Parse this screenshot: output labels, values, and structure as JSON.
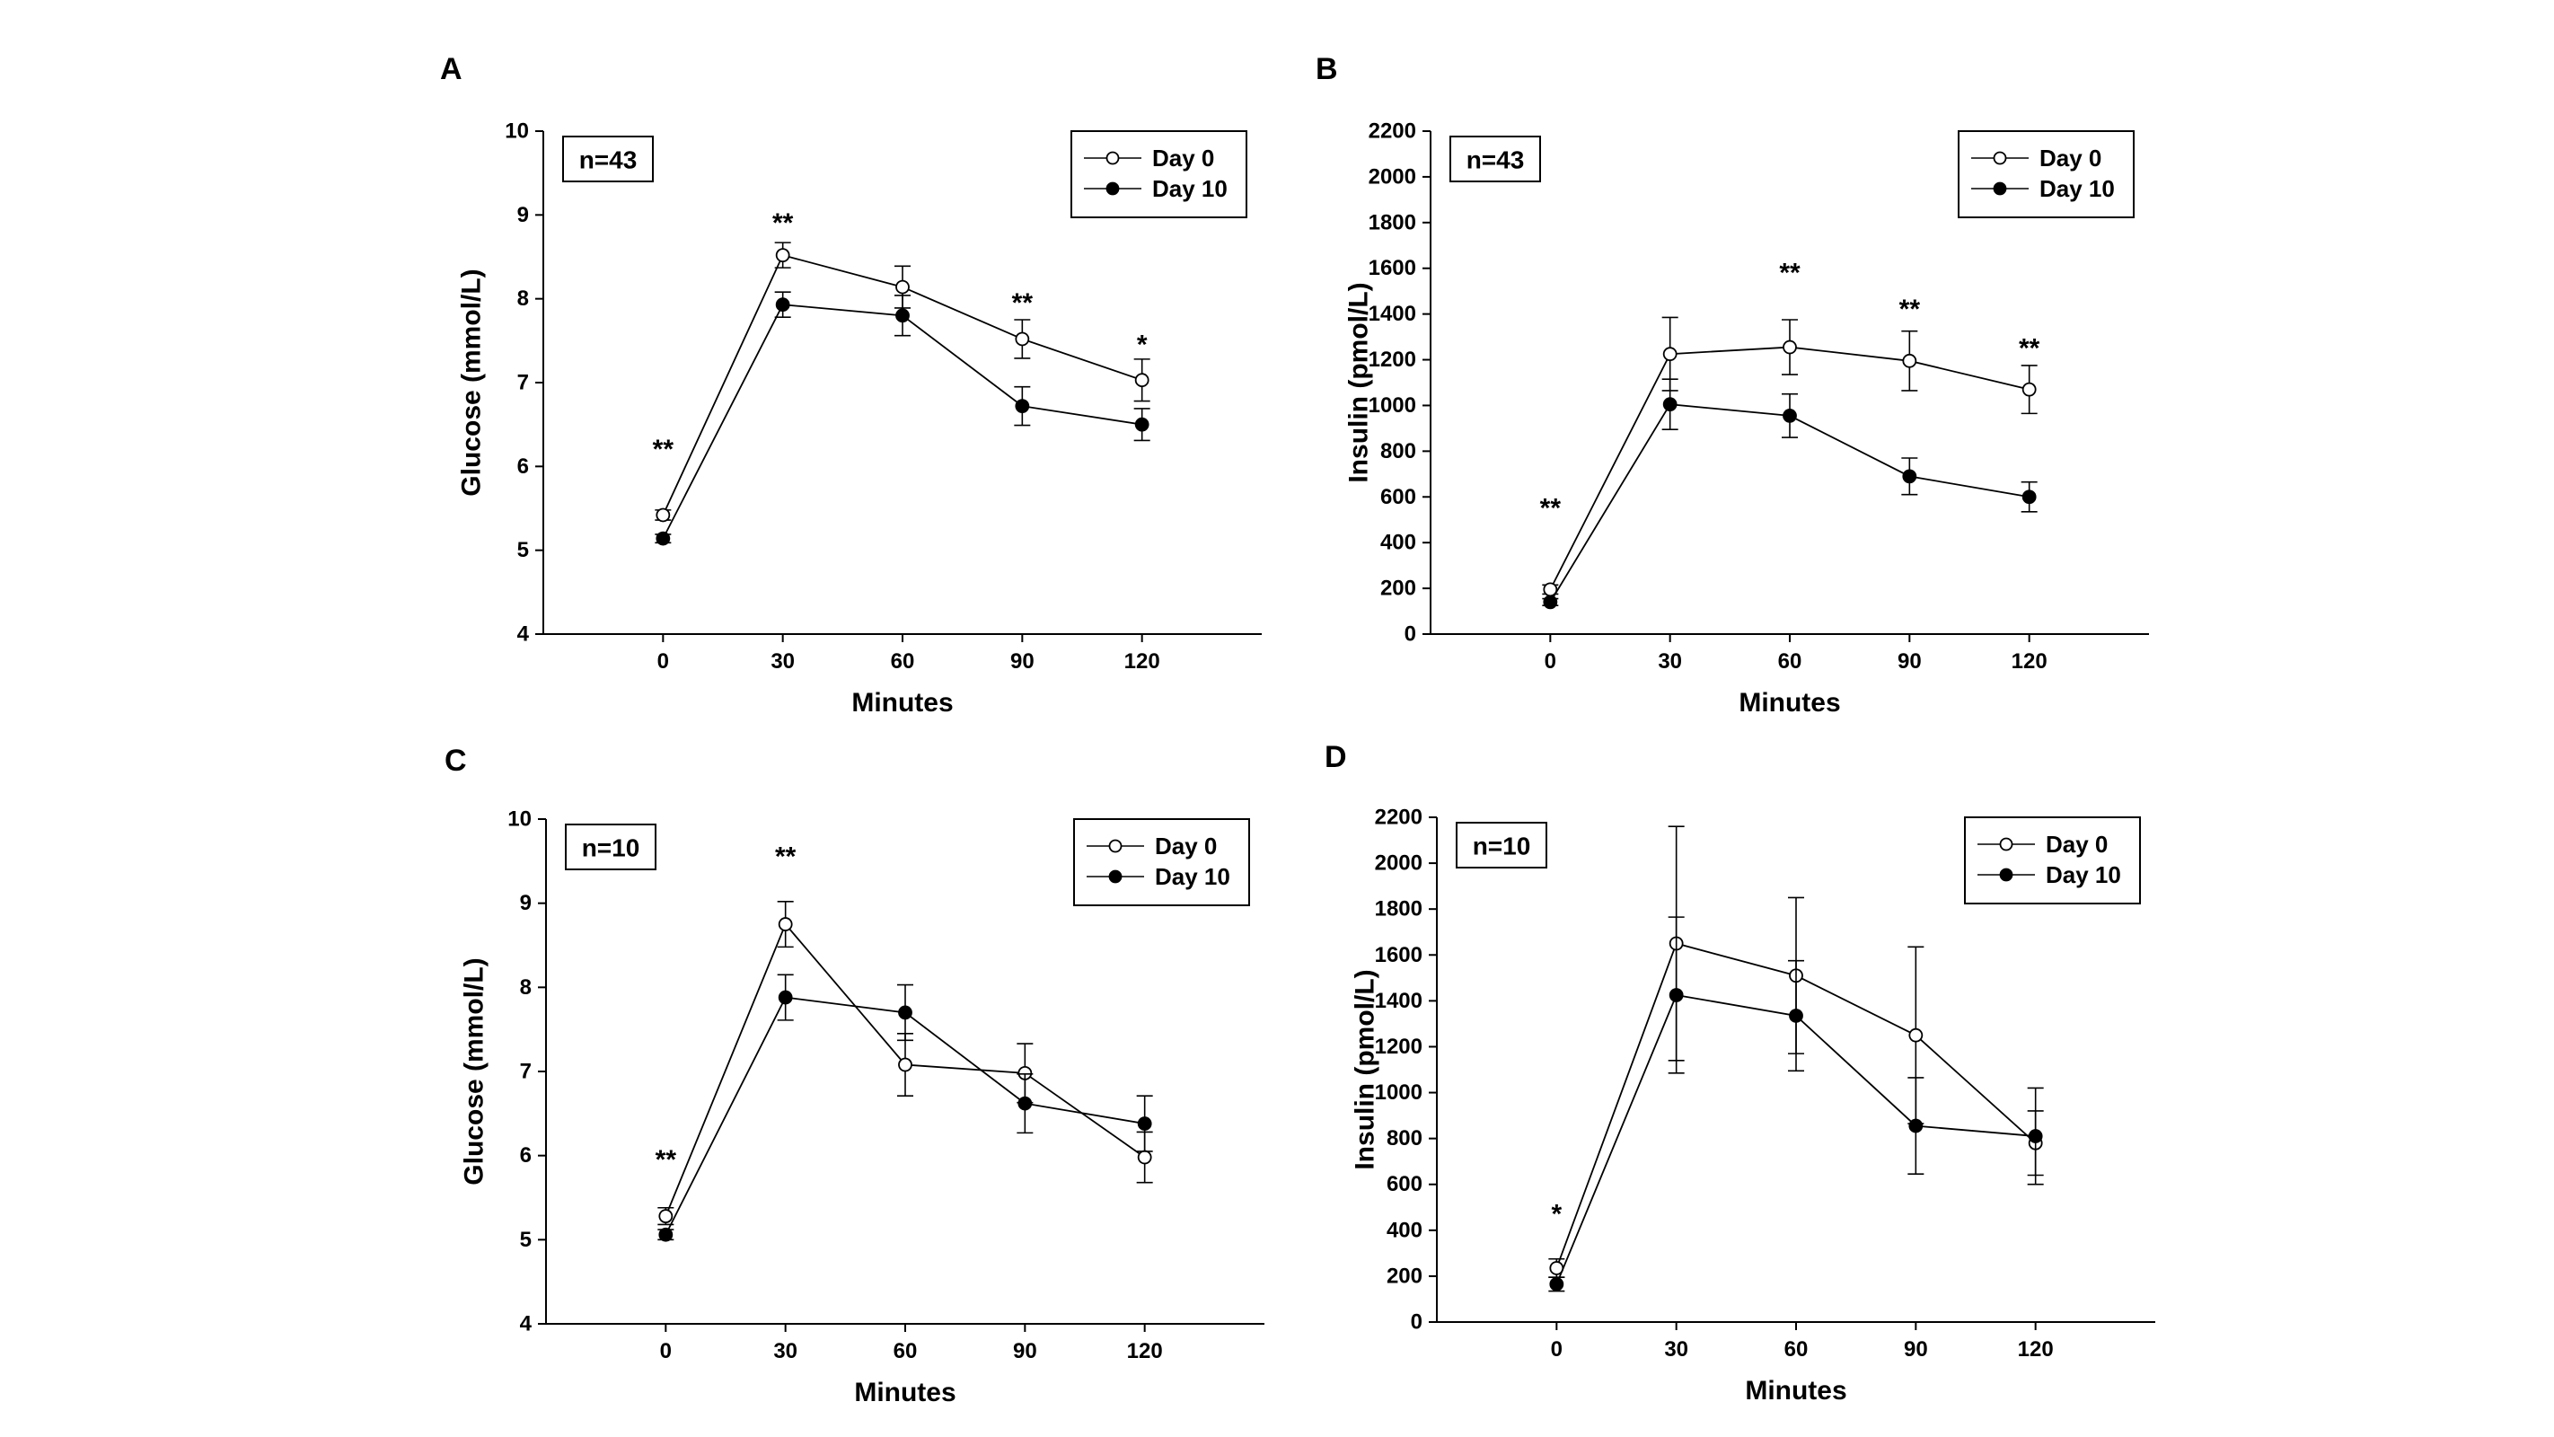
{
  "figure": {
    "panel_labels": [
      "A",
      "B",
      "C",
      "D"
    ]
  },
  "chart_data": [
    {
      "panel": "A",
      "type": "line",
      "sample_label": "n=43",
      "xlabel": "Minutes",
      "ylabel": "Glucose (mmol/L)",
      "x": [
        0,
        30,
        60,
        90,
        120
      ],
      "ylim": [
        4,
        10
      ],
      "yticks": [
        4,
        5,
        6,
        7,
        8,
        9,
        10
      ],
      "xticks": [
        0,
        30,
        60,
        90,
        120
      ],
      "legend": "top-right",
      "series": [
        {
          "name": "Day 0",
          "marker": "open-circle",
          "values": [
            5.42,
            8.52,
            8.14,
            7.52,
            7.03
          ],
          "errors": [
            0.06,
            0.15,
            0.25,
            0.23,
            0.25
          ]
        },
        {
          "name": "Day 10",
          "marker": "filled-circle",
          "values": [
            5.14,
            7.93,
            7.8,
            6.72,
            6.5
          ],
          "errors": [
            0.05,
            0.15,
            0.24,
            0.23,
            0.19
          ]
        }
      ],
      "annotations": [
        {
          "x": 0,
          "text": "**",
          "y": 6.2
        },
        {
          "x": 30,
          "text": "**",
          "y": 8.9
        },
        {
          "x": 90,
          "text": "**",
          "y": 7.95
        },
        {
          "x": 120,
          "text": "*",
          "y": 7.45
        }
      ]
    },
    {
      "panel": "B",
      "type": "line",
      "sample_label": "n=43",
      "xlabel": "Minutes",
      "ylabel": "Insulin (pmol/L)",
      "x": [
        0,
        30,
        60,
        90,
        120
      ],
      "ylim": [
        0,
        2200
      ],
      "yticks": [
        0,
        200,
        400,
        600,
        800,
        1000,
        1200,
        1400,
        1600,
        1800,
        2000,
        2200
      ],
      "xticks": [
        0,
        30,
        60,
        90,
        120
      ],
      "legend": "top-right",
      "series": [
        {
          "name": "Day 0",
          "marker": "open-circle",
          "values": [
            195,
            1225,
            1255,
            1195,
            1070
          ],
          "errors": [
            20,
            160,
            120,
            130,
            105
          ]
        },
        {
          "name": "Day 10",
          "marker": "filled-circle",
          "values": [
            140,
            1005,
            955,
            690,
            600
          ],
          "errors": [
            15,
            110,
            95,
            80,
            65
          ]
        }
      ],
      "annotations": [
        {
          "x": 0,
          "text": "**",
          "y": 550
        },
        {
          "x": 60,
          "text": "**",
          "y": 1580
        },
        {
          "x": 90,
          "text": "**",
          "y": 1420
        },
        {
          "x": 120,
          "text": "**",
          "y": 1250
        }
      ]
    },
    {
      "panel": "C",
      "type": "line",
      "sample_label": "n=10",
      "xlabel": "Minutes",
      "ylabel": "Glucose (mmol/L)",
      "x": [
        0,
        30,
        60,
        90,
        120
      ],
      "ylim": [
        4,
        10
      ],
      "yticks": [
        4,
        5,
        6,
        7,
        8,
        9,
        10
      ],
      "xticks": [
        0,
        30,
        60,
        90,
        120
      ],
      "legend": "top-right",
      "series": [
        {
          "name": "Day 0",
          "marker": "open-circle",
          "values": [
            5.28,
            8.75,
            7.08,
            6.98,
            5.98
          ],
          "errors": [
            0.1,
            0.27,
            0.37,
            0.35,
            0.3
          ]
        },
        {
          "name": "Day 10",
          "marker": "filled-circle",
          "values": [
            5.06,
            7.88,
            7.7,
            6.62,
            6.38
          ],
          "errors": [
            0.06,
            0.27,
            0.33,
            0.35,
            0.33
          ]
        }
      ],
      "annotations": [
        {
          "x": 0,
          "text": "**",
          "y": 5.95
        },
        {
          "x": 30,
          "text": "**",
          "y": 9.55
        }
      ]
    },
    {
      "panel": "D",
      "type": "line",
      "sample_label": "n=10",
      "xlabel": "Minutes",
      "ylabel": "Insulin (pmol/L)",
      "x": [
        0,
        30,
        60,
        90,
        120
      ],
      "ylim": [
        0,
        2200
      ],
      "yticks": [
        0,
        200,
        400,
        600,
        800,
        1000,
        1200,
        1400,
        1600,
        1800,
        2000,
        2200
      ],
      "xticks": [
        0,
        30,
        60,
        90,
        120
      ],
      "legend": "top-right",
      "series": [
        {
          "name": "Day 0",
          "marker": "open-circle",
          "values": [
            235,
            1650,
            1510,
            1250,
            780
          ],
          "errors": [
            40,
            510,
            340,
            385,
            140
          ]
        },
        {
          "name": "Day 10",
          "marker": "filled-circle",
          "values": [
            165,
            1425,
            1335,
            855,
            810
          ],
          "errors": [
            30,
            340,
            240,
            210,
            210
          ]
        }
      ],
      "annotations": [
        {
          "x": 0,
          "text": "*",
          "y": 470
        }
      ]
    }
  ]
}
